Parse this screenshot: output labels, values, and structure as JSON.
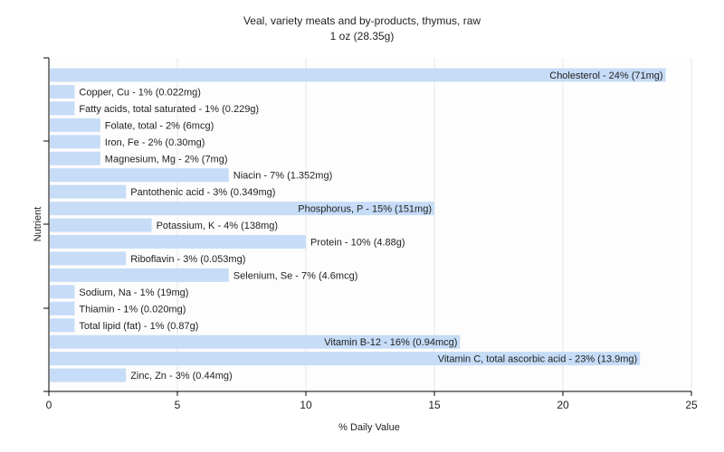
{
  "chart_data": {
    "type": "bar",
    "orientation": "horizontal",
    "title": "Veal, variety meats and by-products, thymus, raw",
    "subtitle": "1 oz (28.35g)",
    "xlabel": "% Daily Value",
    "ylabel": "Nutrient",
    "xlim": [
      0,
      25
    ],
    "xticks": [
      "0",
      "5",
      "10",
      "15",
      "20",
      "25"
    ],
    "grid": true,
    "bar_color": "#c6dcf7",
    "bars": [
      {
        "name": "Cholesterol",
        "value": 24,
        "label": "Cholesterol - 24% (71mg)"
      },
      {
        "name": "Copper, Cu",
        "value": 1,
        "label": "Copper, Cu - 1% (0.022mg)"
      },
      {
        "name": "Fatty acids, total saturated",
        "value": 1,
        "label": "Fatty acids, total saturated - 1% (0.229g)"
      },
      {
        "name": "Folate, total",
        "value": 2,
        "label": "Folate, total - 2% (6mcg)"
      },
      {
        "name": "Iron, Fe",
        "value": 2,
        "label": "Iron, Fe - 2% (0.30mg)"
      },
      {
        "name": "Magnesium, Mg",
        "value": 2,
        "label": "Magnesium, Mg - 2% (7mg)"
      },
      {
        "name": "Niacin",
        "value": 7,
        "label": "Niacin - 7% (1.352mg)"
      },
      {
        "name": "Pantothenic acid",
        "value": 3,
        "label": "Pantothenic acid - 3% (0.349mg)"
      },
      {
        "name": "Phosphorus, P",
        "value": 15,
        "label": "Phosphorus, P - 15% (151mg)"
      },
      {
        "name": "Potassium, K",
        "value": 4,
        "label": "Potassium, K - 4% (138mg)"
      },
      {
        "name": "Protein",
        "value": 10,
        "label": "Protein - 10% (4.88g)"
      },
      {
        "name": "Riboflavin",
        "value": 3,
        "label": "Riboflavin - 3% (0.053mg)"
      },
      {
        "name": "Selenium, Se",
        "value": 7,
        "label": "Selenium, Se - 7% (4.6mcg)"
      },
      {
        "name": "Sodium, Na",
        "value": 1,
        "label": "Sodium, Na - 1% (19mg)"
      },
      {
        "name": "Thiamin",
        "value": 1,
        "label": "Thiamin - 1% (0.020mg)"
      },
      {
        "name": "Total lipid (fat)",
        "value": 1,
        "label": "Total lipid (fat) - 1% (0.87g)"
      },
      {
        "name": "Vitamin B-12",
        "value": 16,
        "label": "Vitamin B-12 - 16% (0.94mcg)"
      },
      {
        "name": "Vitamin C, total ascorbic acid",
        "value": 23,
        "label": "Vitamin C, total ascorbic acid - 23% (13.9mg)"
      },
      {
        "name": "Zinc, Zn",
        "value": 3,
        "label": "Zinc, Zn - 3% (0.44mg)"
      }
    ]
  }
}
